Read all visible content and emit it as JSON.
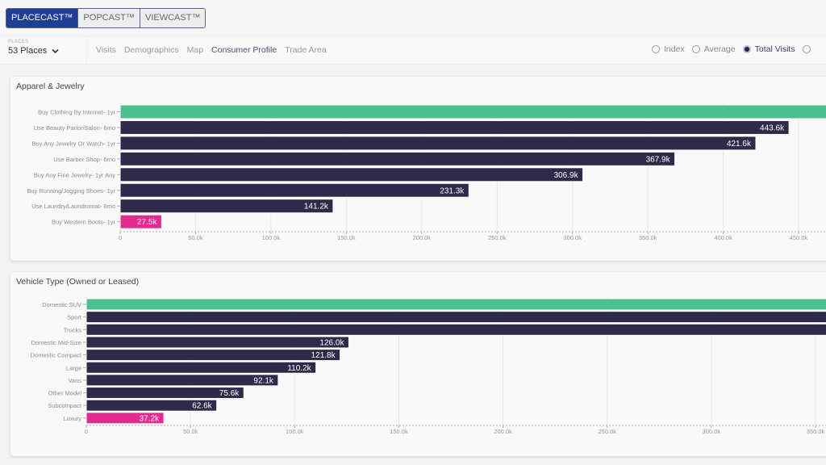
{
  "products": [
    {
      "label": "PLACECAST™",
      "active": true
    },
    {
      "label": "POPCAST™",
      "active": false
    },
    {
      "label": "VIEWCAST™",
      "active": false
    }
  ],
  "places": {
    "label": "PLACES",
    "value": "53 Places"
  },
  "tabs": [
    {
      "label": "Visits",
      "active": false
    },
    {
      "label": "Demographics",
      "active": false
    },
    {
      "label": "Map",
      "active": false
    },
    {
      "label": "Consumer Profile",
      "active": true
    },
    {
      "label": "Trade Area",
      "active": false
    }
  ],
  "metric_options": [
    {
      "label": "Index",
      "selected": false
    },
    {
      "label": "Average",
      "selected": false
    },
    {
      "label": "Total Visits",
      "selected": true
    },
    {
      "label": "",
      "selected": false
    }
  ],
  "colors": {
    "top": "#4cc08f",
    "default": "#2f2a4a",
    "bottom": "#e32b8f"
  },
  "chart_data": [
    {
      "type": "bar",
      "orientation": "horizontal",
      "title": "Apparel & Jewelry",
      "categories": [
        "Buy Clothing By Internet- 1yr",
        "Use Beauty Parlor/Salon- 6mo",
        "Buy Any Jewelry Or Watch- 1yr",
        "Use Barber Shop- 6mo",
        "Buy Any Fine Jewelry- 1yr Any",
        "Buy Running/Jogging Shoes- 1yr",
        "Use Laundry/Laundromat- 6mo",
        "Buy Western Boots- 1yr"
      ],
      "values": [
        null,
        443.6,
        421.6,
        367.9,
        306.9,
        231.3,
        141.2,
        27.5
      ],
      "value_labels": [
        "",
        "443.6k",
        "421.6k",
        "367.9k",
        "306.9k",
        "231.3k",
        "141.2k",
        "27.5k"
      ],
      "xticks": [
        "0",
        "50.0k",
        "100.0k",
        "150.0k",
        "200.0k",
        "250.0k",
        "300.0k",
        "350.0k",
        "400.0k",
        "450.0k"
      ],
      "units": "k",
      "grid": true
    },
    {
      "type": "bar",
      "orientation": "horizontal",
      "title": "Vehicle Type (Owned or Leased)",
      "categories": [
        "Domestic SUV",
        "Sport",
        "Trucks",
        "Domestic Mid-Size",
        "Domestic Compact",
        "Large",
        "Vans",
        "Other Model",
        "Subcompact",
        "Luxury"
      ],
      "values": [
        null,
        null,
        null,
        126.0,
        121.8,
        110.2,
        92.1,
        75.6,
        62.6,
        37.2
      ],
      "value_labels": [
        "",
        "",
        "",
        "126.0k",
        "121.8k",
        "110.2k",
        "92.1k",
        "75.6k",
        "62.6k",
        "37.2k"
      ],
      "xticks": [
        "0",
        "50.0k",
        "100.0k",
        "150.0k",
        "200.0k",
        "250.0k",
        "300.0k",
        "350.0k"
      ],
      "units": "k",
      "grid": true
    }
  ]
}
